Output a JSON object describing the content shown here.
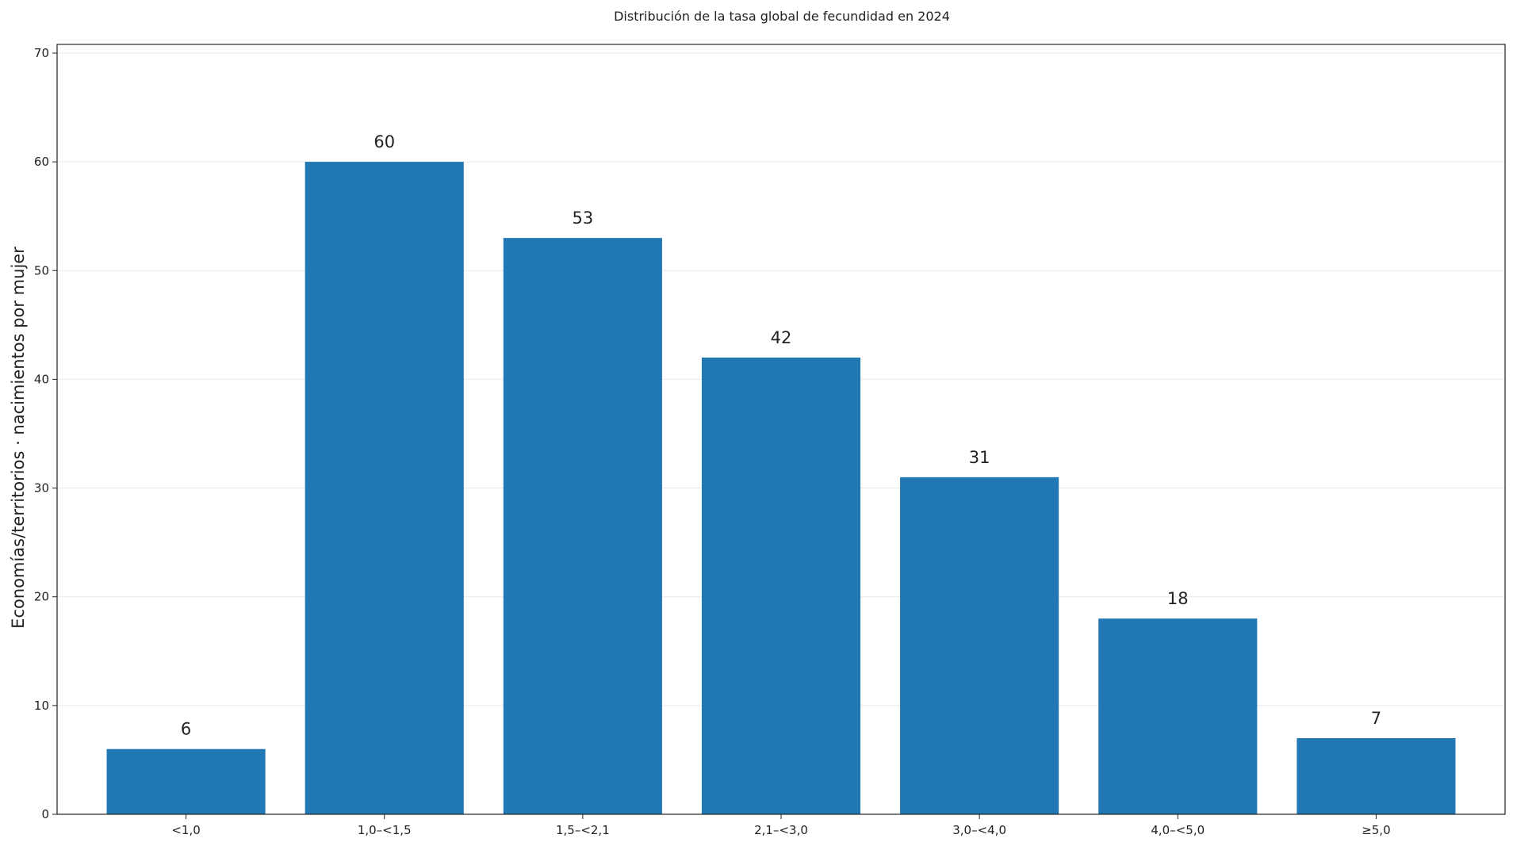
{
  "chart_data": {
    "type": "bar",
    "title": "Distribución de la tasa global de fecundidad en 2024",
    "xlabel": "",
    "ylabel": "Economías/territorios · nacimientos por mujer",
    "categories": [
      "<1,0",
      "1,0–<1,5",
      "1,5–<2,1",
      "2,1–<3,0",
      "3,0–<4,0",
      "4,0–<5,0",
      "≥5,0"
    ],
    "values": [
      6,
      60,
      53,
      42,
      31,
      18,
      7
    ],
    "data_labels": [
      "6",
      "60",
      "53",
      "42",
      "31",
      "18",
      "7"
    ],
    "yticks": [
      0,
      10,
      20,
      30,
      40,
      50,
      60,
      70
    ],
    "ytick_labels": [
      "0",
      "10",
      "20",
      "30",
      "40",
      "50",
      "60",
      "70"
    ],
    "ylim": [
      0,
      70.8
    ],
    "grid": "horizontal",
    "legend": "none",
    "colors": {
      "bar": "#2178b4"
    }
  }
}
